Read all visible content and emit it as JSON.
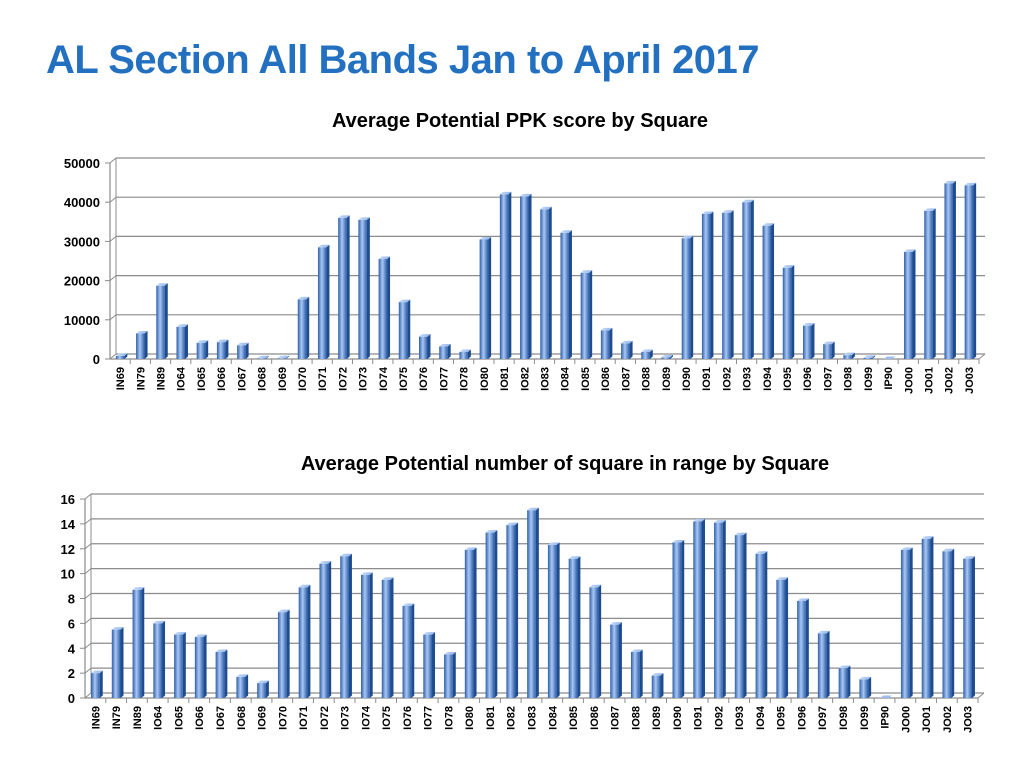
{
  "page": {
    "title": "AL Section All Bands Jan to April 2017"
  },
  "colors": {
    "title": "#2370c0",
    "bar_light": "#a9c8f5",
    "bar_dark": "#2e5ea8",
    "grid": "#8c8c8c"
  },
  "chart_data": [
    {
      "type": "bar",
      "title": "Average Potential PPK score by Square",
      "xlabel": "",
      "ylabel": "",
      "ylim": [
        0,
        50000
      ],
      "yticks": [
        0,
        10000,
        20000,
        30000,
        40000,
        50000
      ],
      "grid": true,
      "legend": "none",
      "categories": [
        "IN69",
        "IN79",
        "IN89",
        "IO64",
        "IO65",
        "IO66",
        "IO67",
        "IO68",
        "IO69",
        "IO70",
        "IO71",
        "IO72",
        "IO73",
        "IO74",
        "IO75",
        "IO76",
        "IO77",
        "IO78",
        "IO80",
        "IO81",
        "IO82",
        "IO83",
        "IO84",
        "IO85",
        "IO86",
        "IO87",
        "IO88",
        "IO89",
        "IO90",
        "IO91",
        "IO92",
        "IO93",
        "IO94",
        "IO95",
        "IO96",
        "IO97",
        "IO98",
        "IO99",
        "IP90",
        "JO00",
        "JO01",
        "JO02",
        "JO03"
      ],
      "values": [
        800,
        6500,
        18700,
        8200,
        4100,
        4300,
        3500,
        200,
        200,
        15200,
        28500,
        36000,
        35500,
        25500,
        14500,
        5700,
        3200,
        1800,
        30500,
        42000,
        41500,
        38200,
        32200,
        22000,
        7300,
        4000,
        1800,
        400,
        30800,
        37000,
        37300,
        40000,
        34000,
        23300,
        8500,
        3800,
        1000,
        300,
        0,
        27300,
        37800,
        44800,
        44300
      ]
    },
    {
      "type": "bar",
      "title": "Average Potential number of square in range by Square",
      "xlabel": "",
      "ylabel": "",
      "ylim": [
        0,
        16
      ],
      "yticks": [
        0,
        2,
        4,
        6,
        8,
        10,
        12,
        14,
        16
      ],
      "grid": true,
      "legend": "none",
      "categories": [
        "IN69",
        "IN79",
        "IN89",
        "IO64",
        "IO65",
        "IO66",
        "IO67",
        "IO68",
        "IO69",
        "IO70",
        "IO71",
        "IO72",
        "IO73",
        "IO74",
        "IO75",
        "IO76",
        "IO77",
        "IO78",
        "IO80",
        "IO81",
        "IO82",
        "IO83",
        "IO84",
        "IO85",
        "IO86",
        "IO87",
        "IO88",
        "IO89",
        "IO90",
        "IO91",
        "IO92",
        "IO93",
        "IO94",
        "IO95",
        "IO96",
        "IO97",
        "IO98",
        "IO99",
        "IP90",
        "JO00",
        "JO01",
        "JO02",
        "JO03"
      ],
      "values": [
        2,
        5.5,
        8.7,
        6,
        5.1,
        4.9,
        3.7,
        1.7,
        1.2,
        6.9,
        8.9,
        10.8,
        11.4,
        9.9,
        9.5,
        7.4,
        5.1,
        3.5,
        11.9,
        13.3,
        13.9,
        15.1,
        12.3,
        11.2,
        8.9,
        5.9,
        3.7,
        1.8,
        12.5,
        14.2,
        14.1,
        13.1,
        11.6,
        9.5,
        7.8,
        5.2,
        2.4,
        1.5,
        0,
        11.9,
        12.8,
        11.8,
        11.2
      ]
    }
  ]
}
